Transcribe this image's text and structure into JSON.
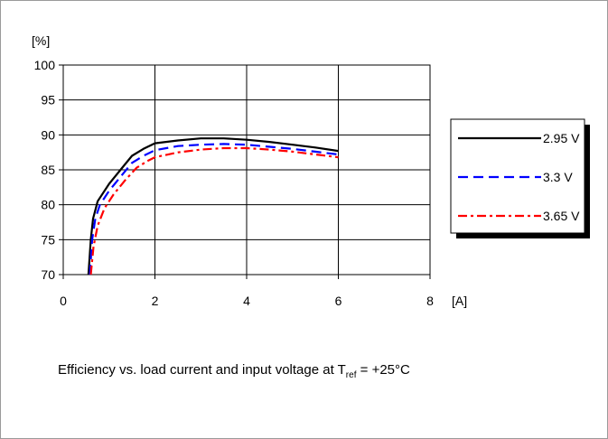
{
  "caption": {
    "text_before": "Efficiency vs. load current and input voltage at T",
    "subscript": "ref",
    "text_after": " = +25°C"
  },
  "chart_data": {
    "type": "line",
    "ylabel": "[%]",
    "xlabel": "[A]",
    "xlim": [
      0,
      8
    ],
    "ylim": [
      70,
      100
    ],
    "x_ticks": [
      "0",
      "2",
      "4",
      "6",
      "8"
    ],
    "y_ticks": [
      "70",
      "75",
      "80",
      "85",
      "90",
      "95",
      "100"
    ],
    "grid": true,
    "legend_position": "right",
    "series": [
      {
        "name": "2.95 V",
        "color": "#000000",
        "dash": "solid",
        "points": [
          [
            0.55,
            70
          ],
          [
            0.6,
            75
          ],
          [
            0.65,
            78
          ],
          [
            0.75,
            80.5
          ],
          [
            1.0,
            83
          ],
          [
            1.25,
            85
          ],
          [
            1.5,
            87
          ],
          [
            1.75,
            88
          ],
          [
            2.0,
            88.8
          ],
          [
            2.5,
            89.2
          ],
          [
            3.0,
            89.5
          ],
          [
            3.5,
            89.5
          ],
          [
            4.0,
            89.3
          ],
          [
            4.5,
            89.0
          ],
          [
            5.0,
            88.6
          ],
          [
            5.5,
            88.2
          ],
          [
            6.0,
            87.7
          ]
        ]
      },
      {
        "name": "3.3 V",
        "color": "#0000ff",
        "dash": "long-dash",
        "points": [
          [
            0.58,
            70
          ],
          [
            0.63,
            75
          ],
          [
            0.7,
            78
          ],
          [
            0.8,
            80
          ],
          [
            1.0,
            82
          ],
          [
            1.25,
            84
          ],
          [
            1.5,
            86
          ],
          [
            1.75,
            87
          ],
          [
            2.0,
            87.8
          ],
          [
            2.5,
            88.4
          ],
          [
            3.0,
            88.6
          ],
          [
            3.5,
            88.7
          ],
          [
            4.0,
            88.6
          ],
          [
            4.5,
            88.3
          ],
          [
            5.0,
            88.0
          ],
          [
            5.5,
            87.6
          ],
          [
            6.0,
            87.2
          ]
        ]
      },
      {
        "name": "3.65 V",
        "color": "#ff0000",
        "dash": "dash-dot",
        "points": [
          [
            0.6,
            70
          ],
          [
            0.66,
            74
          ],
          [
            0.75,
            77
          ],
          [
            0.9,
            79.5
          ],
          [
            1.1,
            81.5
          ],
          [
            1.35,
            83.5
          ],
          [
            1.6,
            85.3
          ],
          [
            1.85,
            86.3
          ],
          [
            2.0,
            86.8
          ],
          [
            2.5,
            87.5
          ],
          [
            3.0,
            87.9
          ],
          [
            3.5,
            88.1
          ],
          [
            4.0,
            88.1
          ],
          [
            4.5,
            87.9
          ],
          [
            5.0,
            87.6
          ],
          [
            5.5,
            87.2
          ],
          [
            6.0,
            86.8
          ]
        ]
      }
    ]
  }
}
